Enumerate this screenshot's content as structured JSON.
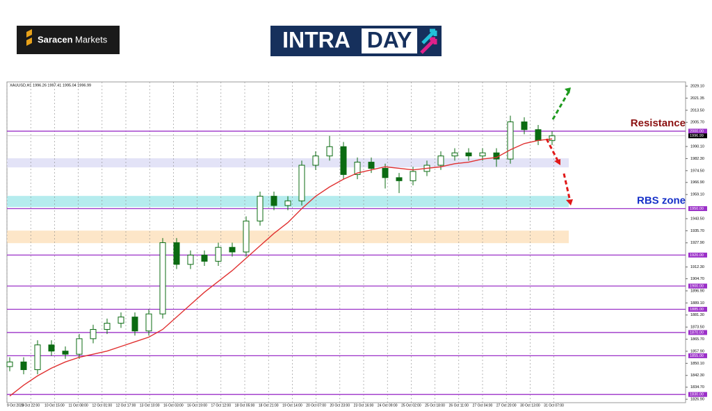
{
  "header": {
    "brand_bold": "Saracen",
    "brand_light": "Markets",
    "banner_left": "INTRA",
    "banner_right": "DAY"
  },
  "chart_data": {
    "type": "candlestick",
    "symbol_info": "XAUUSD,H1  1996.26 1997.41 1995.04 1996.99",
    "x_labels": [
      "9 Oct 2023",
      "9 Oct 22:00",
      "10 Oct 15:00",
      "11 Oct 08:00",
      "12 Oct 01:00",
      "12 Oct 17:00",
      "13 Oct 10:00",
      "16 Oct 03:00",
      "16 Oct 19:00",
      "17 Oct 12:00",
      "18 Oct 05:00",
      "18 Oct 21:00",
      "19 Oct 14:00",
      "20 Oct 07:00",
      "20 Oct 23:00",
      "23 Oct 16:00",
      "24 Oct 09:00",
      "25 Oct 02:00",
      "25 Oct 18:00",
      "26 Oct 11:00",
      "27 Oct 04:00",
      "27 Oct 20:00",
      "30 Oct 13:00",
      "31 Oct 07:00"
    ],
    "open": [
      1848,
      1851,
      1846,
      1862,
      1858,
      1856,
      1866,
      1872,
      1876,
      1880,
      1871,
      1882,
      1928,
      1914,
      1920,
      1916,
      1925,
      1922,
      1942,
      1958,
      1952,
      1955,
      1978,
      1984,
      1990,
      1972,
      1980,
      1976,
      1970,
      1968,
      1974,
      1978,
      1984,
      1986,
      1984,
      1986,
      1982,
      2006,
      2001,
      1994
    ],
    "high": [
      1854,
      1854,
      1865,
      1865,
      1861,
      1869,
      1875,
      1879,
      1883,
      1883,
      1885,
      1931,
      1931,
      1923,
      1923,
      1928,
      1928,
      1945,
      1961,
      1961,
      1958,
      1981,
      1987,
      1997,
      1993,
      1983,
      1983,
      1979,
      1973,
      1977,
      1981,
      1987,
      1989,
      1989,
      1989,
      1989,
      2010,
      2009,
      2004,
      2000
    ],
    "low": [
      1845,
      1843,
      1843,
      1855,
      1853,
      1853,
      1863,
      1869,
      1873,
      1868,
      1868,
      1879,
      1911,
      1911,
      1913,
      1913,
      1919,
      1919,
      1939,
      1949,
      1949,
      1952,
      1975,
      1981,
      1969,
      1969,
      1973,
      1963,
      1960,
      1965,
      1971,
      1975,
      1981,
      1981,
      1981,
      1977,
      1979,
      1998,
      1991,
      1991
    ],
    "close": [
      1851,
      1846,
      1862,
      1858,
      1856,
      1866,
      1872,
      1876,
      1880,
      1871,
      1882,
      1928,
      1914,
      1920,
      1916,
      1925,
      1922,
      1942,
      1958,
      1952,
      1955,
      1978,
      1984,
      1990,
      1972,
      1980,
      1976,
      1970,
      1968,
      1974,
      1978,
      1984,
      1986,
      1984,
      1986,
      1982,
      2006,
      2001,
      1994,
      1997
    ],
    "up_color": "#0b6b12",
    "down_color": "#0b6b12",
    "ma": {
      "color": "#e03030",
      "values": [
        1829,
        1836,
        1842,
        1847,
        1851,
        1854,
        1856,
        1858,
        1861,
        1864,
        1867,
        1872,
        1880,
        1888,
        1896,
        1903,
        1910,
        1918,
        1926,
        1934,
        1941,
        1950,
        1958,
        1964,
        1969,
        1973,
        1975,
        1977,
        1976,
        1975,
        1976,
        1977,
        1979,
        1980,
        1982,
        1983,
        1988,
        1992,
        1994,
        1995
      ]
    },
    "ylim": [
      1824.7,
      2031.8
    ],
    "yticks": [
      {
        "value": 2029.1,
        "label": "2029.10"
      },
      2021.35,
      {
        "value": 2013.5,
        "label": "2013.50"
      },
      {
        "value": 2005.7,
        "label": "2005.70"
      },
      {
        "value": 1990.1,
        "label": "1990.10"
      },
      {
        "value": 1982.3,
        "label": "1982.30"
      },
      {
        "value": 1974.5,
        "label": "1974.50"
      },
      {
        "value": 1966.9,
        "label": "1966.90"
      },
      {
        "value": 1959.1,
        "label": "1959.10"
      },
      {
        "value": 1943.5,
        "label": "1943.50"
      },
      {
        "value": 1935.7,
        "label": "1935.70"
      },
      {
        "value": 1927.9,
        "label": "1927.90"
      },
      {
        "value": 1912.3,
        "label": "1912.30"
      },
      {
        "value": 1904.7,
        "label": "1904.70"
      },
      {
        "value": 1896.9,
        "label": "1896.90"
      },
      {
        "value": 1889.1,
        "label": "1889.10"
      },
      {
        "value": 1881.3,
        "label": "1881.30"
      },
      {
        "value": 1873.5,
        "label": "1873.50"
      },
      {
        "value": 1865.7,
        "label": "1865.70"
      },
      {
        "value": 1857.9,
        "label": "1857.90"
      },
      {
        "value": 1850.1,
        "label": "1850.10"
      },
      {
        "value": 1842.3,
        "label": "1842.30"
      },
      {
        "value": 1834.7,
        "label": "1834.70"
      },
      {
        "value": 1826.9,
        "label": "1826.90"
      }
    ],
    "levels": [
      {
        "value": 2000,
        "label": "2000.00"
      },
      {
        "value": 1950,
        "label": "1950.00"
      },
      {
        "value": 1920,
        "label": "1920.00"
      },
      {
        "value": 1900,
        "label": "1900.00"
      },
      {
        "value": 1885,
        "label": "1885.00"
      },
      {
        "value": 1870,
        "label": "1870.00"
      },
      {
        "value": 1855,
        "label": "1855.00"
      },
      {
        "value": 1830,
        "label": "1830.00"
      }
    ],
    "level_color": "#9b30c8",
    "current_price": 1996.99,
    "zones": [
      {
        "from": 1976.6,
        "to": 1982.5,
        "color": "#e3e3f7"
      },
      {
        "from": 1951,
        "to": 1958.2,
        "color": "#b5ecee"
      },
      {
        "from": 1927.7,
        "to": 1935.8,
        "color": "#fde6c8"
      }
    ],
    "annotations": [
      {
        "text": "Resistance",
        "price": 2000,
        "color": "#8b1010"
      },
      {
        "text": "RBS zone",
        "price": 1950,
        "color": "#1530c8"
      }
    ]
  }
}
